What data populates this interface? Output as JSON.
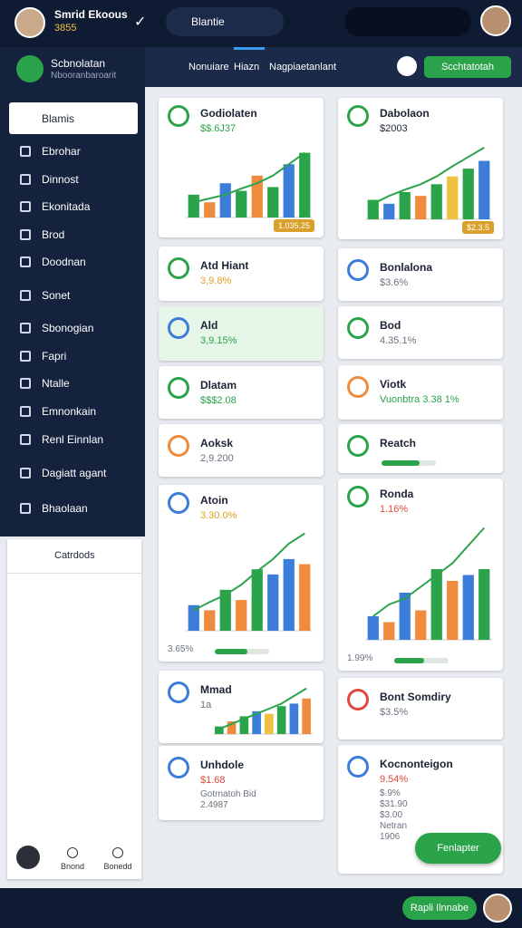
{
  "header": {
    "user_name": "Smrid Ekoous",
    "user_score": "3855",
    "search_tab": "Blantie"
  },
  "sidebar": {
    "profile_title": "Scbnolatan",
    "profile_sub": "Nbooranbaroarit",
    "active_item": "Blamis",
    "items": [
      "Ebrohar",
      "Dinnost",
      "Ekonitada",
      "Brod",
      "Doodnan",
      "Sonet",
      "Sbonogian",
      "Fapri",
      "Ntalle",
      "Emnonkain",
      "Renl Einnlan",
      "Dagiatt agant",
      "Bhaolaan"
    ]
  },
  "tabs": [
    "Nonuiare",
    "Hiazn",
    "Nagpiaetanlant"
  ],
  "action_button": "Scchtatotah",
  "panel": {
    "title": "Catrdods",
    "buttons": [
      "Bnond",
      "Bonedd"
    ]
  },
  "cards": [
    {
      "title": "Godiolaten",
      "value": "$$.6J37",
      "value_color": "#2aa34a",
      "accent": "#2aa34a",
      "badge": "1.035.25",
      "chart": {
        "ylim": [
          0,
          100
        ],
        "values": [
          30,
          20,
          45,
          35,
          55,
          40,
          70,
          85
        ],
        "colors": [
          "#2aa34a",
          "#f08a3c",
          "#3b7dd8",
          "#2aa34a",
          "#f08a3c",
          "#2aa34a",
          "#3b7dd8",
          "#2aa34a"
        ],
        "trend": [
          20,
          25,
          30,
          38,
          45,
          55,
          70,
          85
        ]
      }
    },
    {
      "title": "Atd Hiant",
      "value": "3,9.8%",
      "value_color": "#e0a020",
      "accent": "#2aa34a"
    },
    {
      "title": "Ald",
      "value": "3,9.15%",
      "value_color": "#2aa34a",
      "accent": "#3b7dd8",
      "highlight": true
    },
    {
      "title": "Dlatam",
      "value": "$$$2.08",
      "value_color": "#2aa34a",
      "accent": "#2aa34a"
    },
    {
      "title": "Aoksk",
      "value": "2,9.200",
      "value_color": "#6b7280",
      "accent": "#f08a3c"
    },
    {
      "title": "Atoin",
      "value": "3.30.0%",
      "value_color": "#e0a020",
      "accent": "#3b7dd8",
      "footer": "3.65%",
      "progress": 60,
      "chart": {
        "ylim": [
          0,
          100
        ],
        "values": [
          25,
          20,
          40,
          30,
          60,
          55,
          70,
          65
        ],
        "colors": [
          "#3b7dd8",
          "#f08a3c",
          "#2aa34a",
          "#f08a3c",
          "#2aa34a",
          "#3b7dd8",
          "#3b7dd8",
          "#f08a3c"
        ],
        "trend": [
          20,
          28,
          35,
          45,
          58,
          70,
          85,
          95
        ]
      }
    },
    {
      "title": "Mmad",
      "value": "1a",
      "value_color": "#6b7280",
      "accent": "#3b7dd8",
      "chart": {
        "ylim": [
          0,
          100
        ],
        "values": [
          15,
          25,
          35,
          45,
          40,
          55,
          60,
          70
        ],
        "colors": [
          "#2aa34a",
          "#f08a3c",
          "#2aa34a",
          "#3b7dd8",
          "#f0c040",
          "#2aa34a",
          "#3b7dd8",
          "#f08a3c"
        ],
        "trend": [
          10,
          20,
          30,
          40,
          50,
          60,
          75,
          90
        ]
      }
    },
    {
      "title": "Unhdole",
      "value": "$1.68",
      "value_color": "#e04a3c",
      "accent": "#3b7dd8",
      "sub": [
        "Gotrnatoh Bid",
        "2.4987"
      ]
    },
    {
      "title": "Dabolaon",
      "value": "$2003",
      "value_color": "#1c2433",
      "accent": "#2aa34a",
      "badge": "$2.3.5",
      "chart": {
        "ylim": [
          0,
          100
        ],
        "values": [
          25,
          20,
          35,
          30,
          45,
          55,
          65,
          75
        ],
        "colors": [
          "#2aa34a",
          "#3b7dd8",
          "#2aa34a",
          "#f08a3c",
          "#2aa34a",
          "#f0c040",
          "#2aa34a",
          "#3b7dd8"
        ],
        "trend": [
          20,
          30,
          38,
          45,
          55,
          68,
          80,
          92
        ]
      }
    },
    {
      "title": "Bonlalona",
      "value": "$3.6%",
      "value_color": "#6b7280",
      "accent": "#3b7dd8"
    },
    {
      "title": "Bod",
      "value": "4.35.1%",
      "value_color": "#6b7280",
      "accent": "#2aa34a"
    },
    {
      "title": "Viotk",
      "value": "Vuonbtra 3.38 1%",
      "value_color": "#2aa34a",
      "accent": "#f08a3c"
    },
    {
      "title": "Reatch",
      "value": "",
      "value_color": "#6b7280",
      "accent": "#2aa34a",
      "progress": 70
    },
    {
      "title": "Ronda",
      "value": "1.16%",
      "value_color": "#e04a3c",
      "accent": "#2aa34a",
      "footer": "1.99%",
      "progress": 55,
      "chart": {
        "ylim": [
          0,
          100
        ],
        "values": [
          20,
          15,
          40,
          25,
          60,
          50,
          55,
          60
        ],
        "colors": [
          "#3b7dd8",
          "#f08a3c",
          "#3b7dd8",
          "#f08a3c",
          "#2aa34a",
          "#f08a3c",
          "#3b7dd8",
          "#2aa34a"
        ],
        "trend": [
          20,
          30,
          35,
          45,
          55,
          65,
          80,
          95
        ]
      }
    },
    {
      "title": "Bont Somdiry",
      "value": "$3.5%",
      "value_color": "#6b7280",
      "accent": "#e04a3c"
    },
    {
      "title": "Kocnonteigon",
      "value": "9.54%",
      "value_color": "#e04a3c",
      "accent": "#3b7dd8",
      "sub": [
        "$.9%",
        "$31.90",
        "$3.00",
        "Netran",
        "1906"
      ]
    }
  ],
  "floating_button": "Fenlapter",
  "bottom_button": "Rapli Ilnnabe"
}
